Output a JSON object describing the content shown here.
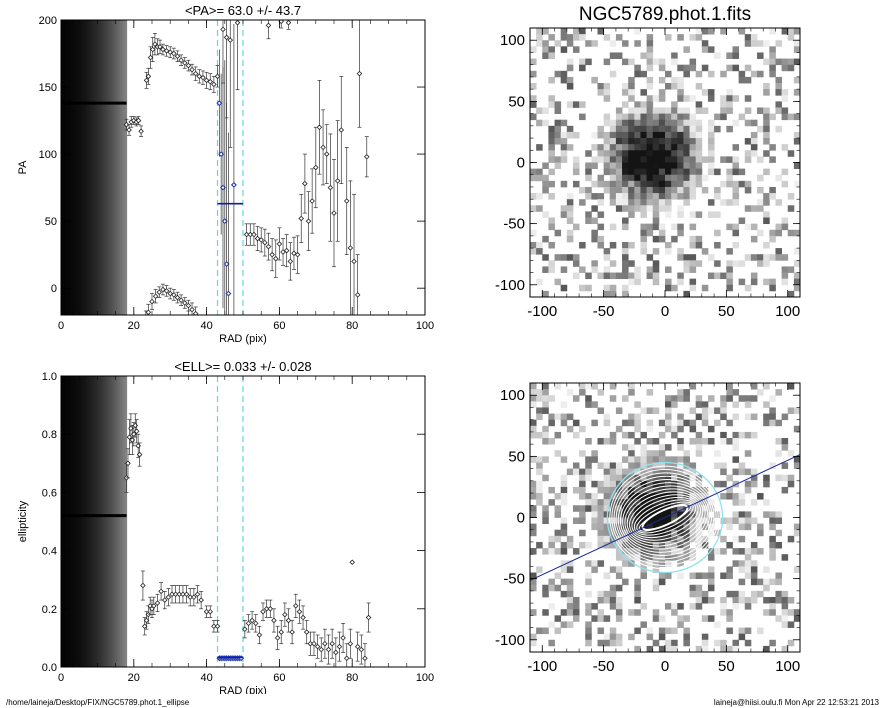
{
  "footer": {
    "path": "/home/laineja/Desktop/FIX/NGC5789.phot.1_ellipse",
    "user_stamp": "laineja@hiisi.oulu.fi  Mon Apr 22 12:53:21 2013"
  },
  "chart_data": [
    {
      "type": "scatter",
      "panel": "pa-profile",
      "title": "<PA>=  63.0 +/-  43.7",
      "xlabel": "RAD (pix)",
      "ylabel": "PA",
      "xlim": [
        0,
        100
      ],
      "ylim": [
        -20,
        200
      ],
      "xticks": [
        0,
        20,
        40,
        60,
        80,
        100
      ],
      "yticks": [
        0,
        50,
        100,
        150,
        200
      ],
      "mean_value": 63.0,
      "mean_range_x": [
        43,
        50
      ],
      "window_lines_x": [
        43,
        50
      ],
      "core_region_x": [
        0,
        18
      ],
      "core_value": 138,
      "points": [
        {
          "x": 18.0,
          "y": 122,
          "e": 4
        },
        {
          "x": 18.7,
          "y": 118,
          "e": 4
        },
        {
          "x": 19.3,
          "y": 124,
          "e": 4
        },
        {
          "x": 20.0,
          "y": 125,
          "e": 3
        },
        {
          "x": 20.7,
          "y": 124,
          "e": 3
        },
        {
          "x": 21.3,
          "y": 125,
          "e": 3
        },
        {
          "x": 22.0,
          "y": 117,
          "e": 4
        },
        {
          "x": 23.5,
          "y": 155,
          "e": 6
        },
        {
          "x": 24.0,
          "y": 158,
          "e": 6
        },
        {
          "x": 24.6,
          "y": 172,
          "e": 8
        },
        {
          "x": 25.2,
          "y": 178,
          "e": 9
        },
        {
          "x": 25.8,
          "y": 182,
          "e": 8
        },
        {
          "x": 26.5,
          "y": 180,
          "e": 6
        },
        {
          "x": 27.2,
          "y": 180,
          "e": 5
        },
        {
          "x": 28.0,
          "y": 178,
          "e": 4
        },
        {
          "x": 29.0,
          "y": 177,
          "e": 4
        },
        {
          "x": 30.0,
          "y": 176,
          "e": 4
        },
        {
          "x": 31.0,
          "y": 175,
          "e": 4
        },
        {
          "x": 32.0,
          "y": 173,
          "e": 4
        },
        {
          "x": 33.0,
          "y": 170,
          "e": 4
        },
        {
          "x": 34.0,
          "y": 168,
          "e": 4
        },
        {
          "x": 35.0,
          "y": 166,
          "e": 4
        },
        {
          "x": 36.0,
          "y": 163,
          "e": 4
        },
        {
          "x": 37.0,
          "y": 160,
          "e": 5
        },
        {
          "x": 38.0,
          "y": 158,
          "e": 5
        },
        {
          "x": 39.0,
          "y": 157,
          "e": 5
        },
        {
          "x": 40.0,
          "y": 155,
          "e": 6
        },
        {
          "x": 41.0,
          "y": 154,
          "e": 6
        },
        {
          "x": 42.0,
          "y": 152,
          "e": 6
        },
        {
          "x": 43.0,
          "y": 158,
          "e": 8
        },
        {
          "x": 23.3,
          "y": -23,
          "e": 6
        },
        {
          "x": 24.0,
          "y": -18,
          "e": 6
        },
        {
          "x": 25.0,
          "y": -10,
          "e": 6
        },
        {
          "x": 26.0,
          "y": -6,
          "e": 5
        },
        {
          "x": 27.0,
          "y": -3,
          "e": 4
        },
        {
          "x": 28.0,
          "y": -1,
          "e": 4
        },
        {
          "x": 29.0,
          "y": -2,
          "e": 4
        },
        {
          "x": 30.0,
          "y": -4,
          "e": 4
        },
        {
          "x": 31.0,
          "y": -5,
          "e": 4
        },
        {
          "x": 32.0,
          "y": -7,
          "e": 4
        },
        {
          "x": 33.0,
          "y": -9,
          "e": 4
        },
        {
          "x": 34.0,
          "y": -11,
          "e": 4
        },
        {
          "x": 35.0,
          "y": -13,
          "e": 4
        },
        {
          "x": 36.0,
          "y": -16,
          "e": 5
        },
        {
          "x": 37.0,
          "y": -19,
          "e": 5
        },
        {
          "x": 44.5,
          "y": 193,
          "e": 40
        },
        {
          "x": 45.5,
          "y": 187,
          "e": 60
        },
        {
          "x": 46.5,
          "y": 185,
          "e": 80
        },
        {
          "x": 48.5,
          "y": 198,
          "e": 50
        },
        {
          "x": 51.0,
          "y": 40,
          "e": 8
        },
        {
          "x": 52.0,
          "y": 40,
          "e": 8
        },
        {
          "x": 53.0,
          "y": 40,
          "e": 8
        },
        {
          "x": 54.0,
          "y": 37,
          "e": 9
        },
        {
          "x": 55.0,
          "y": 36,
          "e": 9
        },
        {
          "x": 56.0,
          "y": 34,
          "e": 10
        },
        {
          "x": 57.0,
          "y": 31,
          "e": 10
        },
        {
          "x": 58.0,
          "y": 25,
          "e": 12
        },
        {
          "x": 59.0,
          "y": 22,
          "e": 14
        },
        {
          "x": 60.0,
          "y": 33,
          "e": 12
        },
        {
          "x": 61.0,
          "y": 27,
          "e": 10
        },
        {
          "x": 62.0,
          "y": 28,
          "e": 12
        },
        {
          "x": 63.0,
          "y": 20,
          "e": 14
        },
        {
          "x": 64.0,
          "y": 26,
          "e": 12
        },
        {
          "x": 65.0,
          "y": 25,
          "e": 14
        },
        {
          "x": 66.0,
          "y": 52,
          "e": 18
        },
        {
          "x": 67.0,
          "y": 78,
          "e": 22
        },
        {
          "x": 68.0,
          "y": 50,
          "e": 22
        },
        {
          "x": 69.0,
          "y": 65,
          "e": 24
        },
        {
          "x": 70.0,
          "y": 90,
          "e": 30
        },
        {
          "x": 71.0,
          "y": 120,
          "e": 35
        },
        {
          "x": 72.0,
          "y": 105,
          "e": 28
        },
        {
          "x": 73.0,
          "y": 100,
          "e": 22
        },
        {
          "x": 74.0,
          "y": 75,
          "e": 40
        },
        {
          "x": 75.0,
          "y": 56,
          "e": 40
        },
        {
          "x": 76.0,
          "y": 80,
          "e": 45
        },
        {
          "x": 77.0,
          "y": 118,
          "e": 40
        },
        {
          "x": 78.5,
          "y": 65,
          "e": 40
        },
        {
          "x": 79.5,
          "y": 30,
          "e": 50
        },
        {
          "x": 80.5,
          "y": 20,
          "e": 50
        },
        {
          "x": 81.5,
          "y": -5,
          "e": 30
        },
        {
          "x": 82.0,
          "y": 160,
          "e": 40
        },
        {
          "x": 84.0,
          "y": 98,
          "e": 15
        },
        {
          "x": 57.0,
          "y": 196,
          "e": 10
        },
        {
          "x": 60.5,
          "y": 199,
          "e": 5
        },
        {
          "x": 62.5,
          "y": 198,
          "e": 5
        }
      ],
      "highlight_points": [
        {
          "x": 43.5,
          "y": 138,
          "e": 40
        },
        {
          "x": 44.0,
          "y": 100,
          "e": 60
        },
        {
          "x": 44.5,
          "y": 75,
          "e": 90
        },
        {
          "x": 45.0,
          "y": 50,
          "e": 120
        },
        {
          "x": 45.5,
          "y": 18,
          "e": 120
        },
        {
          "x": 46.0,
          "y": -4,
          "e": 120
        },
        {
          "x": 47.5,
          "y": 77,
          "e": 120
        }
      ]
    },
    {
      "type": "scatter",
      "panel": "ell-profile",
      "title": "<ELL>= 0.033 +/-  0.028",
      "xlabel": "RAD (pix)",
      "ylabel": "ellipticity",
      "xlim": [
        0,
        100
      ],
      "ylim": [
        0.0,
        1.0
      ],
      "xticks": [
        0,
        20,
        40,
        60,
        80,
        100
      ],
      "yticks": [
        0.0,
        0.2,
        0.4,
        0.6,
        0.8,
        1.0
      ],
      "mean_value": 0.033,
      "mean_range_x": [
        43,
        50
      ],
      "window_lines_x": [
        43,
        50
      ],
      "core_region_x": [
        0,
        18
      ],
      "core_value": 0.52,
      "points": [
        {
          "x": 18.0,
          "y": 0.65,
          "e": 0.05
        },
        {
          "x": 18.4,
          "y": 0.7,
          "e": 0.05
        },
        {
          "x": 18.8,
          "y": 0.79,
          "e": 0.06
        },
        {
          "x": 19.2,
          "y": 0.82,
          "e": 0.05
        },
        {
          "x": 19.6,
          "y": 0.78,
          "e": 0.05
        },
        {
          "x": 20.0,
          "y": 0.8,
          "e": 0.04
        },
        {
          "x": 20.4,
          "y": 0.83,
          "e": 0.04
        },
        {
          "x": 20.8,
          "y": 0.81,
          "e": 0.04
        },
        {
          "x": 21.2,
          "y": 0.76,
          "e": 0.04
        },
        {
          "x": 21.6,
          "y": 0.73,
          "e": 0.04
        },
        {
          "x": 22.5,
          "y": 0.28,
          "e": 0.05
        },
        {
          "x": 23.0,
          "y": 0.14,
          "e": 0.03
        },
        {
          "x": 23.5,
          "y": 0.16,
          "e": 0.03
        },
        {
          "x": 24.0,
          "y": 0.18,
          "e": 0.03
        },
        {
          "x": 24.5,
          "y": 0.21,
          "e": 0.03
        },
        {
          "x": 25.0,
          "y": 0.2,
          "e": 0.03
        },
        {
          "x": 25.5,
          "y": 0.21,
          "e": 0.03
        },
        {
          "x": 26.5,
          "y": 0.22,
          "e": 0.03
        },
        {
          "x": 27.5,
          "y": 0.26,
          "e": 0.03
        },
        {
          "x": 28.5,
          "y": 0.23,
          "e": 0.03
        },
        {
          "x": 29.5,
          "y": 0.24,
          "e": 0.03
        },
        {
          "x": 30.5,
          "y": 0.25,
          "e": 0.03
        },
        {
          "x": 31.5,
          "y": 0.25,
          "e": 0.03
        },
        {
          "x": 32.5,
          "y": 0.25,
          "e": 0.03
        },
        {
          "x": 33.5,
          "y": 0.25,
          "e": 0.03
        },
        {
          "x": 34.5,
          "y": 0.25,
          "e": 0.03
        },
        {
          "x": 35.5,
          "y": 0.24,
          "e": 0.03
        },
        {
          "x": 36.5,
          "y": 0.24,
          "e": 0.03
        },
        {
          "x": 37.5,
          "y": 0.25,
          "e": 0.03
        },
        {
          "x": 38.5,
          "y": 0.23,
          "e": 0.03
        },
        {
          "x": 40.0,
          "y": 0.19,
          "e": 0.02
        },
        {
          "x": 41.0,
          "y": 0.19,
          "e": 0.02
        },
        {
          "x": 42.0,
          "y": 0.14,
          "e": 0.02
        },
        {
          "x": 43.0,
          "y": 0.14,
          "e": 0.02
        },
        {
          "x": 50.5,
          "y": 0.13,
          "e": 0.03
        },
        {
          "x": 51.5,
          "y": 0.15,
          "e": 0.03
        },
        {
          "x": 52.5,
          "y": 0.16,
          "e": 0.03
        },
        {
          "x": 53.5,
          "y": 0.15,
          "e": 0.03
        },
        {
          "x": 54.5,
          "y": 0.11,
          "e": 0.03
        },
        {
          "x": 55.5,
          "y": 0.19,
          "e": 0.03
        },
        {
          "x": 56.5,
          "y": 0.2,
          "e": 0.03
        },
        {
          "x": 57.5,
          "y": 0.2,
          "e": 0.03
        },
        {
          "x": 58.5,
          "y": 0.16,
          "e": 0.04
        },
        {
          "x": 59.5,
          "y": 0.1,
          "e": 0.04
        },
        {
          "x": 60.5,
          "y": 0.12,
          "e": 0.04
        },
        {
          "x": 61.5,
          "y": 0.18,
          "e": 0.04
        },
        {
          "x": 62.5,
          "y": 0.16,
          "e": 0.04
        },
        {
          "x": 63.5,
          "y": 0.12,
          "e": 0.04
        },
        {
          "x": 64.5,
          "y": 0.21,
          "e": 0.04
        },
        {
          "x": 65.5,
          "y": 0.19,
          "e": 0.04
        },
        {
          "x": 66.5,
          "y": 0.17,
          "e": 0.04
        },
        {
          "x": 67.5,
          "y": 0.12,
          "e": 0.04
        },
        {
          "x": 68.5,
          "y": 0.08,
          "e": 0.04
        },
        {
          "x": 69.5,
          "y": 0.08,
          "e": 0.04
        },
        {
          "x": 70.5,
          "y": 0.07,
          "e": 0.04
        },
        {
          "x": 71.5,
          "y": 0.06,
          "e": 0.04
        },
        {
          "x": 72.5,
          "y": 0.08,
          "e": 0.05
        },
        {
          "x": 73.5,
          "y": 0.06,
          "e": 0.05
        },
        {
          "x": 74.5,
          "y": 0.08,
          "e": 0.05
        },
        {
          "x": 75.5,
          "y": 0.05,
          "e": 0.05
        },
        {
          "x": 76.5,
          "y": 0.07,
          "e": 0.05
        },
        {
          "x": 77.5,
          "y": 0.1,
          "e": 0.05
        },
        {
          "x": 78.5,
          "y": 0.03,
          "e": 0.05
        },
        {
          "x": 79.5,
          "y": 0.08,
          "e": 0.05
        },
        {
          "x": 80.0,
          "y": 0.36,
          "e": 0.0
        },
        {
          "x": 81.5,
          "y": 0.07,
          "e": 0.05
        },
        {
          "x": 82.5,
          "y": 0.06,
          "e": 0.05
        },
        {
          "x": 83.5,
          "y": 0.03,
          "e": 0.05
        },
        {
          "x": 84.5,
          "y": 0.17,
          "e": 0.05
        }
      ],
      "highlight_points": [
        {
          "x": 43.5,
          "y": 0.03,
          "e": 0.01
        },
        {
          "x": 44.0,
          "y": 0.03,
          "e": 0.01
        },
        {
          "x": 44.5,
          "y": 0.03,
          "e": 0.01
        },
        {
          "x": 45.0,
          "y": 0.03,
          "e": 0.01
        },
        {
          "x": 45.5,
          "y": 0.03,
          "e": 0.01
        },
        {
          "x": 46.0,
          "y": 0.03,
          "e": 0.01
        },
        {
          "x": 46.5,
          "y": 0.03,
          "e": 0.01
        },
        {
          "x": 47.0,
          "y": 0.03,
          "e": 0.01
        },
        {
          "x": 47.5,
          "y": 0.03,
          "e": 0.01
        },
        {
          "x": 48.0,
          "y": 0.03,
          "e": 0.01
        },
        {
          "x": 48.5,
          "y": 0.03,
          "e": 0.01
        },
        {
          "x": 49.0,
          "y": 0.03,
          "e": 0.01
        },
        {
          "x": 49.5,
          "y": 0.03,
          "e": 0.01
        }
      ]
    },
    {
      "type": "heatmap",
      "panel": "galaxy-image",
      "title": "NGC5789.phot.1.fits",
      "xlim": [
        -110,
        110
      ],
      "ylim": [
        -110,
        110
      ],
      "xticks": [
        -100,
        -50,
        0,
        50,
        100
      ],
      "yticks": [
        -100,
        -50,
        0,
        50,
        100
      ],
      "grid": 44,
      "source_center": [
        -10,
        5
      ],
      "source_radius": 45
    },
    {
      "type": "heatmap",
      "panel": "ellipse-overlay",
      "title": "",
      "xlim": [
        -110,
        110
      ],
      "ylim": [
        -110,
        110
      ],
      "xticks": [
        -100,
        -50,
        0,
        50,
        100
      ],
      "yticks": [
        -100,
        -50,
        0,
        50,
        100
      ],
      "grid": 44,
      "source_center": [
        -10,
        5
      ],
      "source_radius": 45,
      "position_angle_line_deg": -25,
      "outer_ellipse_semi_axes": [
        45,
        42
      ],
      "inner_ellipse_semi_axes": [
        23,
        6
      ],
      "ellipse_count": 14
    }
  ],
  "colors": {
    "axis": "#000000",
    "marker": "#222222",
    "highlight": "#2b3fb0",
    "mean_line": "#0a1fa8",
    "window_line": "#5fd7e6",
    "pa_line": "#1a2a9c",
    "ellipse": "#ffffff",
    "cyan_ellipse": "#8fe3ef"
  }
}
